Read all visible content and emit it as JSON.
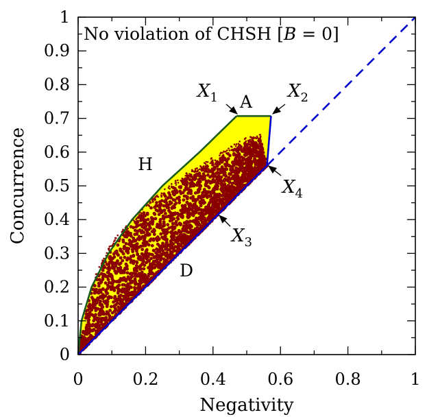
{
  "chart_data": {
    "type": "scatter",
    "title": "No violation of CHSH [B = 0]",
    "title_parts": {
      "prefix": "No violation of CHSH [",
      "var": "B",
      "suffix": " = 0]"
    },
    "xlabel": "Negativity",
    "ylabel": "Concurrence",
    "xlim": [
      0,
      1
    ],
    "ylim": [
      0,
      1
    ],
    "x_ticks": [
      "0",
      "0.2",
      "0.4",
      "0.6",
      "0.8",
      "1"
    ],
    "y_ticks": [
      "0",
      "0.1",
      "0.2",
      "0.3",
      "0.4",
      "0.5",
      "0.6",
      "0.7",
      "0.8",
      "0.9",
      "1"
    ],
    "grid": false,
    "colors": {
      "region_fill": "#ffff00",
      "points": "#8b0000",
      "boundary_H": "#1a5a1a",
      "boundary_D": "#0000cc",
      "diagonal_dashed": "#0000cc"
    },
    "boundaries": {
      "H_curve": {
        "label": "H",
        "points": [
          [
            0,
            0
          ],
          [
            0.01,
            0.1
          ],
          [
            0.04,
            0.2
          ],
          [
            0.09,
            0.3
          ],
          [
            0.16,
            0.4
          ],
          [
            0.25,
            0.5
          ],
          [
            0.36,
            0.6
          ],
          [
            0.47,
            0.707
          ]
        ]
      },
      "A_segment": {
        "label": "A",
        "points": [
          [
            0.47,
            0.707
          ],
          [
            0.572,
            0.707
          ]
        ]
      },
      "right_segment": {
        "points": [
          [
            0.572,
            0.707
          ],
          [
            0.56,
            0.56
          ]
        ]
      },
      "D_line": {
        "label": "D",
        "points": [
          [
            0,
            0
          ],
          [
            0.56,
            0.56
          ]
        ]
      },
      "diagonal_dashed": {
        "points": [
          [
            0.56,
            0.56
          ],
          [
            1,
            1
          ]
        ]
      }
    },
    "scatter_region": {
      "lower": [
        [
          0,
          0
        ],
        [
          0.56,
          0.56
        ]
      ],
      "upper": [
        [
          0,
          0
        ],
        [
          0.02,
          0.12
        ],
        [
          0.05,
          0.22
        ],
        [
          0.1,
          0.32
        ],
        [
          0.2,
          0.43
        ],
        [
          0.3,
          0.51
        ],
        [
          0.4,
          0.57
        ],
        [
          0.5,
          0.63
        ],
        [
          0.54,
          0.64
        ],
        [
          0.56,
          0.56
        ]
      ]
    },
    "annotations": [
      {
        "name": "X",
        "subscript": "1",
        "point": [
          0.47,
          0.707
        ]
      },
      {
        "name": "X",
        "subscript": "2",
        "point": [
          0.572,
          0.707
        ]
      },
      {
        "name": "X",
        "subscript": "3",
        "point": [
          0.42,
          0.42
        ]
      },
      {
        "name": "X",
        "subscript": "4",
        "point": [
          0.56,
          0.56
        ]
      }
    ]
  }
}
